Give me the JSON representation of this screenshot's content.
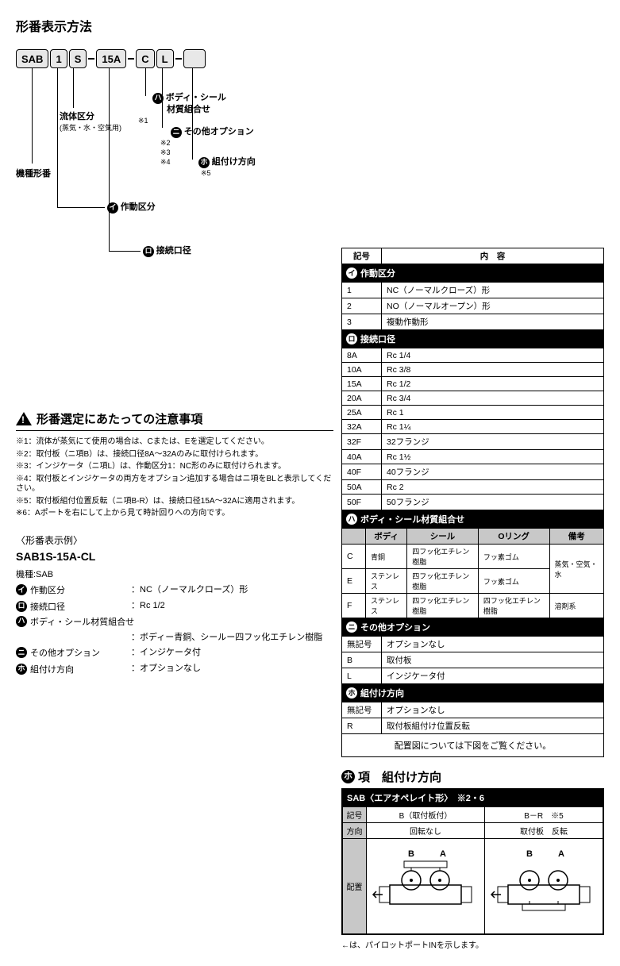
{
  "title": "形番表示方法",
  "segments": {
    "seg0": "SAB",
    "seg1": "1",
    "seg2": "S",
    "seg3": "15A",
    "seg4": "C",
    "seg5": "L"
  },
  "annotations": {
    "machine": {
      "label": "機種形番"
    },
    "fluid": {
      "label": "流体区分",
      "sub": "(蒸気・水・空気用)"
    },
    "bodyseal": {
      "label": "ボディ・シール",
      "line2": "材質組合せ",
      "note": "※1"
    },
    "other": {
      "label": "その他オプション",
      "notes": "※2\n※3\n※4"
    },
    "mount": {
      "label": "組付け方向",
      "note": "※5"
    },
    "actuation": {
      "label": "作動区分"
    },
    "port": {
      "label": "接続口径"
    }
  },
  "badges": {
    "i": "イ",
    "ro": "ロ",
    "ha": "ハ",
    "ni": "ニ",
    "ho": "ホ"
  },
  "warn": {
    "title": "形番選定にあたっての注意事項",
    "notes": [
      "※1：流体が蒸気にて使用の場合は、Cまたは、Eを選定してください。",
      "※2：取付板（ニ項B）は、接続口径8A～32Aのみに取付けられます。",
      "※3：インジケータ（ニ項L）は、作動区分1：NC形のみに取付けられます。",
      "※4：取付板とインジケータの両方をオプション追加する場合はニ項をBLと表示してください。",
      "※5：取付板組付位置反転（ニ項B-R）は、接続口径15A～32Aに適用されます。",
      "※6：Aポートを右にして上から見て時計回りへの方向です。"
    ]
  },
  "example": {
    "title": "〈形番表示例〉",
    "pn": "SAB1S-15A-CL",
    "machine": "機種:SAB",
    "rows": [
      {
        "badge": "イ",
        "label": "作動区分",
        "val": "：NC（ノーマルクローズ）形"
      },
      {
        "badge": "ロ",
        "label": "接続口径",
        "val": "：Rc 1/2"
      },
      {
        "badge": "ハ",
        "label": "ボディ・シール材質組合せ",
        "val": ""
      },
      {
        "badge": "",
        "label": "",
        "val": "：ボディー青銅、シールー四フッ化エチレン樹脂"
      },
      {
        "badge": "ニ",
        "label": "その他オプション",
        "val": "：インジケータ付"
      },
      {
        "badge": "ホ",
        "label": "組付け方向",
        "val": "：オプションなし"
      }
    ]
  },
  "spec_header": {
    "col1": "記号",
    "col2": "内　容"
  },
  "sec_actuation": {
    "title": "作動区分",
    "rows": [
      [
        "1",
        "NC（ノーマルクローズ）形"
      ],
      [
        "2",
        "NO（ノーマルオープン）形"
      ],
      [
        "3",
        "複動作動形"
      ]
    ]
  },
  "sec_port": {
    "title": "接続口径",
    "rows": [
      [
        "8A",
        "Rc 1/4"
      ],
      [
        "10A",
        "Rc 3/8"
      ],
      [
        "15A",
        "Rc 1/2"
      ],
      [
        "20A",
        "Rc 3/4"
      ],
      [
        "25A",
        "Rc  1"
      ],
      [
        "32A",
        "Rc 1¼"
      ],
      [
        "32F",
        "32フランジ"
      ],
      [
        "40A",
        "Rc 1½"
      ],
      [
        "40F",
        "40フランジ"
      ],
      [
        "50A",
        "Rc 2"
      ],
      [
        "50F",
        "50フランジ"
      ]
    ]
  },
  "sec_material": {
    "title": "ボディ・シール材質組合せ",
    "headers": [
      "",
      "ボディ",
      "シール",
      "Oリング",
      "備考"
    ],
    "rows": [
      [
        "C",
        "青銅",
        "四フッ化エチレン樹脂",
        "フッ素ゴム",
        ""
      ],
      [
        "E",
        "ステンレス",
        "四フッ化エチレン樹脂",
        "フッ素ゴム",
        "蒸気・空気・水"
      ],
      [
        "F",
        "ステンレス",
        "四フッ化エチレン樹脂",
        "四フッ化エチレン樹脂",
        "溶剤系"
      ]
    ]
  },
  "sec_other": {
    "title": "その他オプション",
    "rows": [
      [
        "無記号",
        "オプションなし"
      ],
      [
        "B",
        "取付板"
      ],
      [
        "L",
        "インジケータ付"
      ]
    ]
  },
  "sec_mount": {
    "title": "組付け方向",
    "rows": [
      [
        "無記号",
        "オプションなし"
      ],
      [
        "R",
        "取付板組付け位置反転"
      ]
    ],
    "layout_note": "配置図については下図をご覧ください。"
  },
  "mount_dir": {
    "heading_badge": "ホ",
    "heading_label": "項　組付け方向",
    "box_title": "SAB〈エアオペレイト形〉　※2・6",
    "row_code": "記号",
    "row_dir": "方向",
    "row_layout": "配置",
    "col1_code": "B（取付板付）",
    "col2_code": "B－R　※5",
    "col1_dir": "回転なし",
    "col2_dir": "取付板　反転",
    "port_b": "B",
    "port_a": "A",
    "foot": "←は、パイロットポートINを示します。"
  }
}
